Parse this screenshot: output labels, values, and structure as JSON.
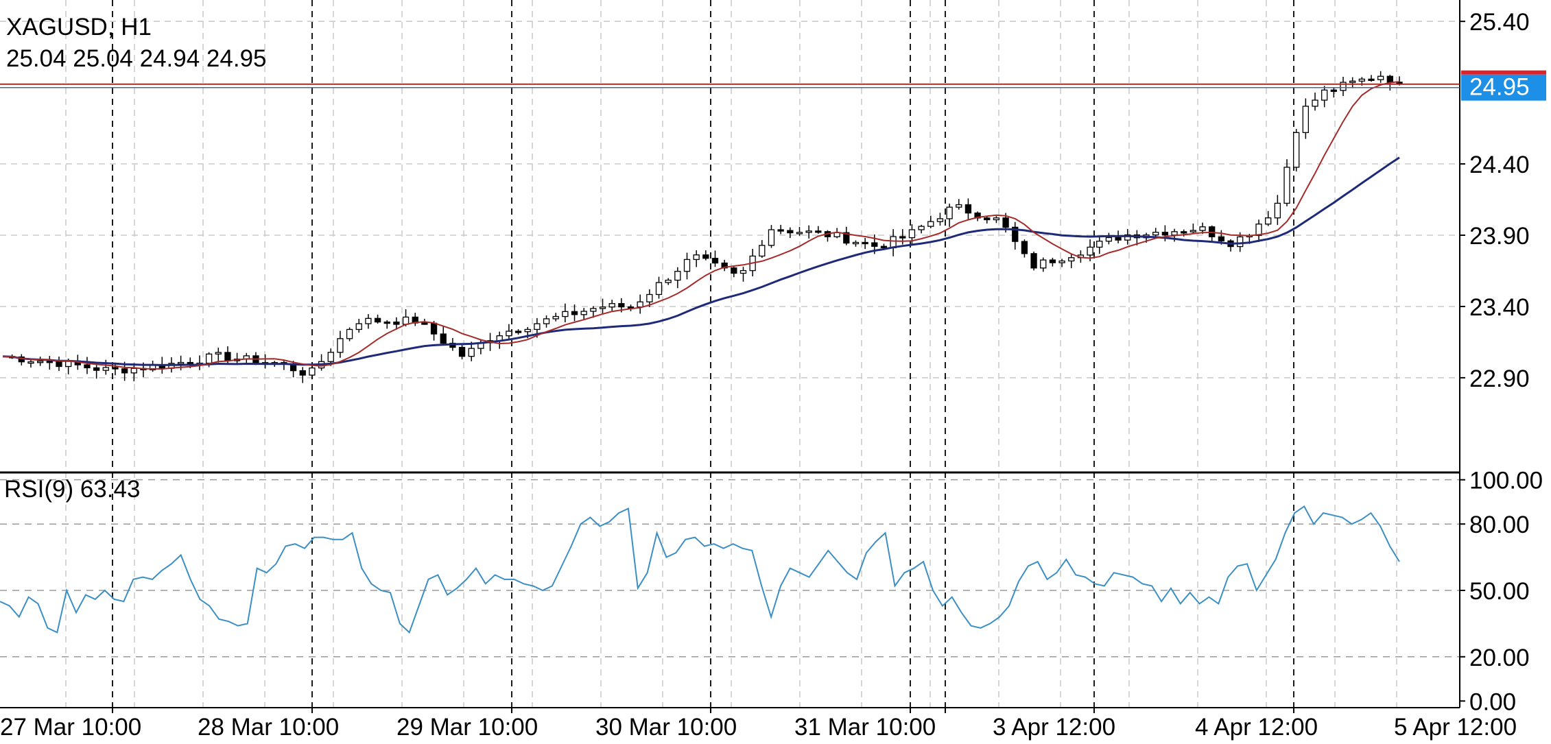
{
  "header": {
    "symbol_timeframe": "XAGUSD, H1",
    "ohlc": "25.04 25.04 24.94 24.95"
  },
  "rsi_panel": {
    "label": "RSI(9) 63.43"
  },
  "colors": {
    "background": "#ffffff",
    "grid": "#c8c8c8",
    "separator": "#000000",
    "candle_outline": "#000000",
    "candle_up_fill": "#ffffff",
    "candle_down_fill": "#000000",
    "ma_fast": "#a52a2a",
    "ma_slow": "#1e2a78",
    "rsi_line": "#3b8fc4",
    "price_line": "#a52a2a",
    "price_tag": "#1e8fe6",
    "price_tag_top": "#e0202a"
  },
  "chart_data": [
    {
      "type": "candlestick",
      "title": "XAGUSD, H1",
      "ylim": [
        22.25,
        25.55
      ],
      "y_ticks": [
        "25.40",
        "24.40",
        "23.90",
        "23.40",
        "22.90"
      ],
      "current_price": "24.95",
      "x_time_labels": [
        "27 Mar 10:00",
        "28 Mar 10:00",
        "29 Mar 10:00",
        "30 Mar 10:00",
        "31 Mar 10:00",
        "3 Apr 12:00",
        "4 Apr 12:00",
        "5 Apr 12:00"
      ],
      "session_breaks": [
        "27 Mar",
        "28 Mar",
        "29 Mar",
        "30 Mar",
        "31 Mar",
        "3 Apr",
        "4 Apr",
        "5 Apr"
      ],
      "moving_averages": [
        "fast",
        "slow"
      ]
    },
    {
      "type": "line",
      "title": "RSI(9) 63.43",
      "series_name": "RSI(9)",
      "last_value": 63.43,
      "ylim": [
        -3,
        103
      ],
      "y_ticks": [
        "100.00",
        "80.00",
        "50.00",
        "20.00",
        "0.00"
      ],
      "values": [
        45,
        43,
        38,
        47,
        44,
        33,
        31,
        50,
        40,
        48,
        46,
        50,
        46,
        45,
        55,
        56,
        55,
        59,
        62,
        66,
        55,
        46,
        43,
        37,
        36,
        34,
        35,
        60,
        58,
        62,
        70,
        71,
        69,
        74,
        74,
        73,
        73,
        76,
        60,
        53,
        50,
        49,
        35,
        31,
        43,
        55,
        57,
        48,
        51,
        55,
        60,
        53,
        57,
        55,
        55,
        53,
        52,
        50,
        52,
        61,
        70,
        80,
        83,
        79,
        81,
        85,
        87,
        51,
        58,
        76,
        65,
        67,
        73,
        74,
        70,
        71,
        69,
        71,
        69,
        68,
        52,
        38,
        52,
        60,
        58,
        56,
        62,
        68,
        63,
        58,
        55,
        67,
        72,
        76,
        52,
        58,
        60,
        63,
        50,
        43,
        47,
        40,
        34,
        33,
        35,
        38,
        43,
        54,
        61,
        63,
        55,
        58,
        64,
        57,
        56,
        53,
        52,
        58,
        57,
        56,
        53,
        52,
        45,
        51,
        44,
        49,
        44,
        47,
        44,
        56,
        61,
        62,
        50,
        57,
        64,
        76,
        85,
        88,
        80,
        85,
        84,
        83,
        80,
        82,
        85,
        79,
        70,
        63
      ]
    }
  ]
}
